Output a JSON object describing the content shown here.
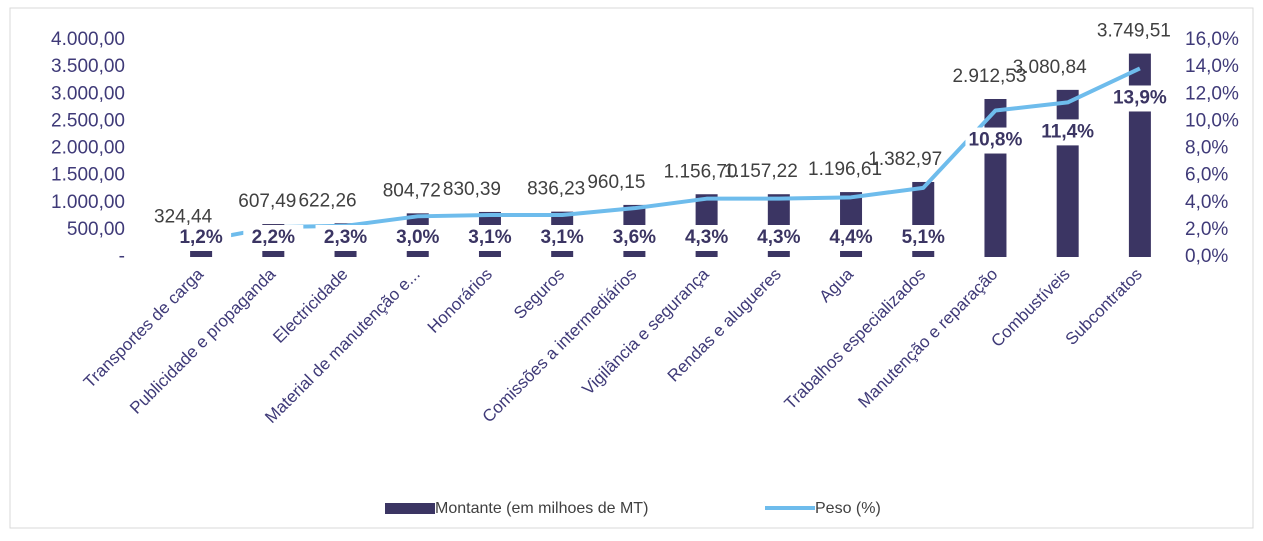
{
  "chart_data": {
    "type": "bar-line",
    "categories": [
      "Transportes de carga",
      "Publicidade e propaganda",
      "Electricidade",
      "Material de manutenção e...",
      "Honorários",
      "Seguros",
      "Comissões a intermediários",
      "Vigilância e segurança",
      "Rendas e alugueres",
      "Agua",
      "Trabalhos especializados",
      "Manutenção e reparação",
      "Combustíveis",
      "Subcontratos"
    ],
    "series": [
      {
        "name": "Montante (em milhoes de MT)",
        "color": "#3b3563",
        "type": "bar",
        "values": [
          324.44,
          607.49,
          622.26,
          804.72,
          830.39,
          836.23,
          960.15,
          1156.7,
          1157.22,
          1196.61,
          1382.97,
          2912.53,
          3080.84,
          3749.51
        ],
        "value_labels": [
          "324,44",
          "607,49",
          "622,26",
          "804,72",
          "830,39",
          "836,23",
          "960,15",
          "1.156,70",
          "1.157,22",
          "1.196,61",
          "1.382,97",
          "2.912,53",
          "3.080,84",
          "3.749,51"
        ]
      },
      {
        "name": "Peso (%)",
        "color": "#6ebcec",
        "type": "line",
        "axis": "y2",
        "values": [
          1.2,
          2.2,
          2.3,
          3.0,
          3.1,
          3.1,
          3.6,
          4.3,
          4.3,
          4.4,
          5.1,
          10.8,
          11.4,
          13.9
        ],
        "value_labels": [
          "1,2%",
          "2,2%",
          "2,3%",
          "3,0%",
          "3,1%",
          "3,1%",
          "3,6%",
          "4,3%",
          "4,3%",
          "4,4%",
          "5,1%",
          "10,8%",
          "11,4%",
          "13,9%"
        ]
      }
    ],
    "ylim": [
      0,
      4000
    ],
    "yticks": [
      {
        "value": 0,
        "label": "-"
      },
      {
        "value": 500,
        "label": "500,00"
      },
      {
        "value": 1000,
        "label": "1.000,00"
      },
      {
        "value": 1500,
        "label": "1.500,00"
      },
      {
        "value": 2000,
        "label": "2.000,00"
      },
      {
        "value": 2500,
        "label": "2.500,00"
      },
      {
        "value": 3000,
        "label": "3.000,00"
      },
      {
        "value": 3500,
        "label": "3.500,00"
      },
      {
        "value": 4000,
        "label": "4.000,00"
      }
    ],
    "y2lim": [
      0,
      16
    ],
    "y2ticks": [
      {
        "value": 0,
        "label": "0,0%"
      },
      {
        "value": 2,
        "label": "2,0%"
      },
      {
        "value": 4,
        "label": "4,0%"
      },
      {
        "value": 6,
        "label": "6,0%"
      },
      {
        "value": 8,
        "label": "8,0%"
      },
      {
        "value": 10,
        "label": "10,0%"
      },
      {
        "value": 12,
        "label": "12,0%"
      },
      {
        "value": 14,
        "label": "14,0%"
      },
      {
        "value": 16,
        "label": "16,0%"
      }
    ],
    "grid": false,
    "legend": "bottom"
  }
}
